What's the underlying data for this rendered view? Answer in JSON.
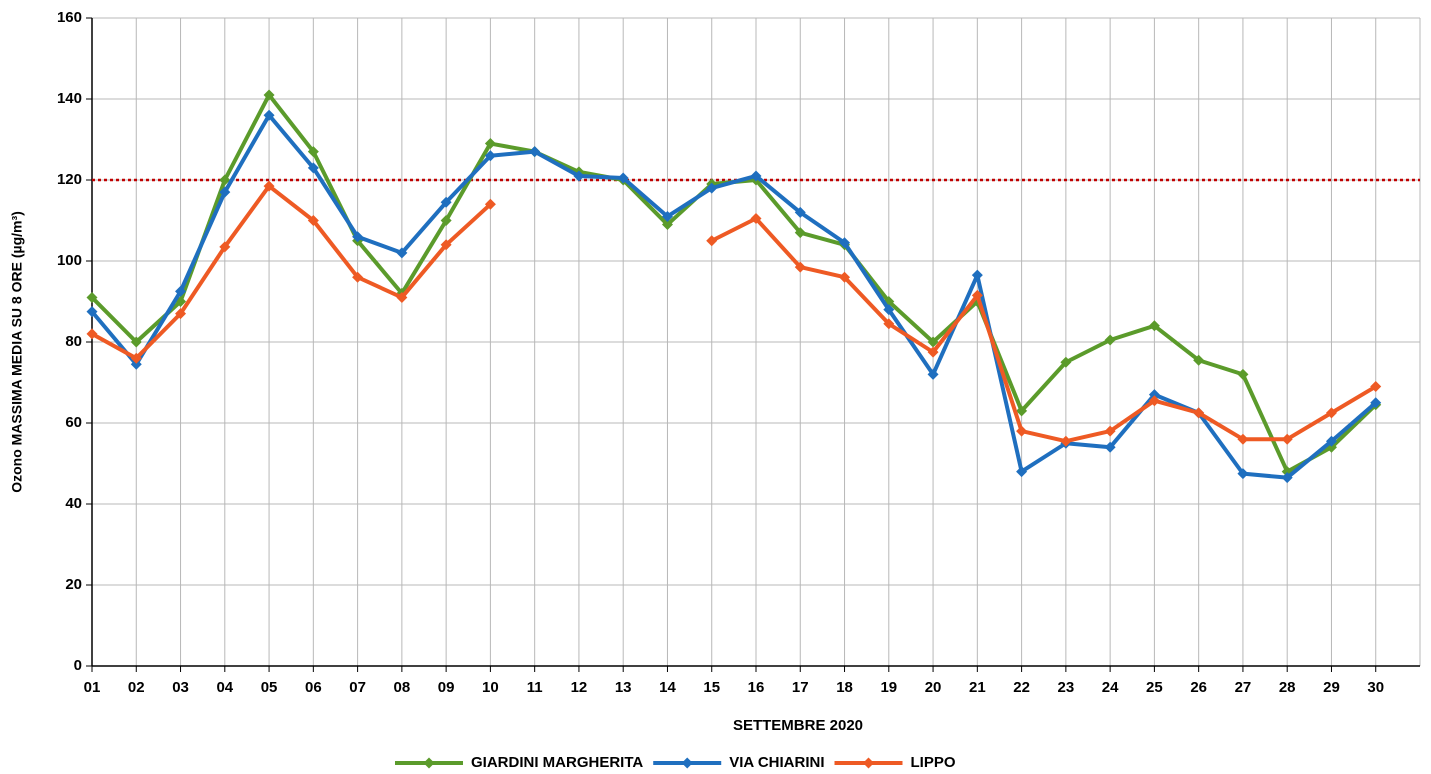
{
  "chart_data": {
    "type": "line",
    "y_label": "Ozono MASSIMA MEDIA SU 8 ORE (µg/m³)",
    "x_label": "SETTEMBRE 2020",
    "categories": [
      "01",
      "02",
      "03",
      "04",
      "05",
      "06",
      "07",
      "08",
      "09",
      "10",
      "11",
      "12",
      "13",
      "14",
      "15",
      "16",
      "17",
      "18",
      "19",
      "20",
      "21",
      "22",
      "23",
      "24",
      "25",
      "26",
      "27",
      "28",
      "29",
      "30"
    ],
    "ylim": [
      0,
      160
    ],
    "yticks": [
      0,
      20,
      40,
      60,
      80,
      100,
      120,
      140,
      160
    ],
    "grid": true,
    "reference_line": {
      "value": 120,
      "color": "#c00000"
    },
    "legend": "bottom",
    "series": [
      {
        "name": "GIARDINI MARGHERITA",
        "color": "#5b9b2b",
        "values": [
          91,
          80,
          90,
          120,
          141,
          127,
          105,
          92,
          110,
          129,
          127,
          122,
          120,
          109,
          119,
          120,
          107,
          104,
          90,
          80,
          90,
          63,
          75,
          80.5,
          84,
          75.5,
          72,
          48,
          54,
          64.5
        ]
      },
      {
        "name": "VIA CHIARINI",
        "color": "#1f6fbf",
        "values": [
          87.5,
          74.5,
          92.5,
          117,
          136,
          123,
          106,
          102,
          114.5,
          126,
          127,
          121,
          120.5,
          111,
          118,
          121,
          112,
          104.5,
          88,
          72,
          96.5,
          48,
          55,
          54,
          67,
          62.5,
          47.5,
          46.5,
          55.5,
          65
        ]
      },
      {
        "name": "LIPPO",
        "color": "#ee5a24",
        "values": [
          82,
          76,
          87,
          103.5,
          118.5,
          110,
          96,
          91,
          104,
          114,
          null,
          null,
          null,
          null,
          105,
          110.5,
          98.5,
          96,
          84.5,
          77.5,
          91.5,
          58,
          55.5,
          58,
          65.5,
          62.5,
          56,
          56,
          62.5,
          69
        ]
      }
    ]
  }
}
